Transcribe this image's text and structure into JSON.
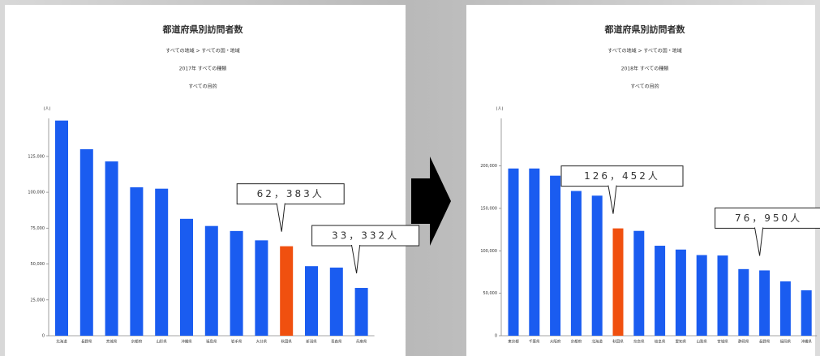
{
  "chart_data": [
    {
      "type": "bar",
      "title": "都道府県別訪問者数",
      "subtitles": [
        "すべての地域 > すべての国・地域",
        "2017年 すべての種類",
        "すべての目的"
      ],
      "y_label": "(人)",
      "categories": [
        "北海道",
        "長野県",
        "宮城県",
        "京都府",
        "山形県",
        "沖縄県",
        "福島県",
        "岩手県",
        "大分県",
        "秋田県",
        "新潟県",
        "青森県",
        "兵庫県"
      ],
      "values": [
        150000,
        130000,
        121500,
        103500,
        102500,
        81500,
        76500,
        73000,
        66500,
        62383,
        48500,
        47500,
        33332
      ],
      "value_labels": [
        null,
        null,
        null,
        null,
        null,
        null,
        null,
        null,
        null,
        "62，383人",
        null,
        null,
        "33，332人"
      ],
      "colors": [
        "#1a5cf0",
        "#1a5cf0",
        "#1a5cf0",
        "#1a5cf0",
        "#1a5cf0",
        "#1a5cf0",
        "#1a5cf0",
        "#1a5cf0",
        "#1a5cf0",
        "#f0500f",
        "#1a5cf0",
        "#1a5cf0",
        "#1a5cf0"
      ],
      "ylim": [
        0,
        151500
      ],
      "yticks": [
        0,
        {
          "value": 25000,
          "label": "25,000"
        },
        {
          "value": 50000,
          "label": "50,000"
        },
        {
          "value": 75000,
          "label": "75,000"
        },
        {
          "value": 100000,
          "label": "100,000"
        },
        {
          "value": 125000,
          "label": "125,000"
        }
      ]
    },
    {
      "type": "bar",
      "title": "都道府県別訪問者数",
      "subtitles": [
        "すべての地域 > すべての国・地域",
        "2018年 すべての種類",
        "すべての目的"
      ],
      "y_label": "(人)",
      "categories": [
        "東京都",
        "千葉県",
        "大阪府",
        "京都府",
        "北海道",
        "秋田県",
        "奈良県",
        "岐阜県",
        "愛知県",
        "山梨県",
        "宮城県",
        "静岡県",
        "長野県",
        "福岡県",
        "沖縄県"
      ],
      "values": [
        197000,
        197000,
        188500,
        170500,
        165000,
        126452,
        123500,
        106000,
        101500,
        95000,
        94500,
        78500,
        76950,
        64000,
        53500
      ],
      "value_labels": [
        null,
        null,
        null,
        null,
        null,
        "126，452人",
        null,
        null,
        null,
        null,
        null,
        null,
        "76，950人",
        null,
        null
      ],
      "colors": [
        "#1a5cf0",
        "#1a5cf0",
        "#1a5cf0",
        "#1a5cf0",
        "#1a5cf0",
        "#f0500f",
        "#1a5cf0",
        "#1a5cf0",
        "#1a5cf0",
        "#1a5cf0",
        "#1a5cf0",
        "#1a5cf0",
        "#1a5cf0",
        "#1a5cf0",
        "#1a5cf0"
      ],
      "ylim": [
        0,
        256000
      ],
      "yticks": [
        0,
        {
          "value": 50000,
          "label": "50,000"
        },
        {
          "value": 100000,
          "label": "100,000"
        },
        {
          "value": 150000,
          "label": "150,000"
        },
        {
          "value": 200000,
          "label": "200,000"
        }
      ]
    }
  ]
}
